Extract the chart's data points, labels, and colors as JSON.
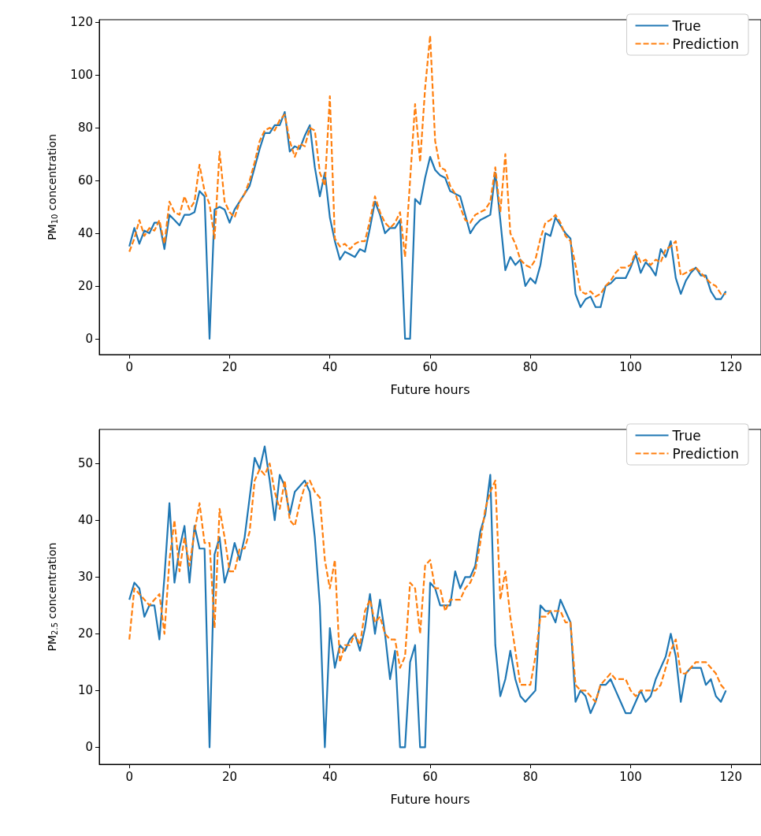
{
  "chart_data": [
    {
      "type": "line",
      "xlabel": "Future hours",
      "ylabel": "PM$_{10}$ concentration",
      "x": [
        0,
        1,
        2,
        3,
        4,
        5,
        6,
        7,
        8,
        9,
        10,
        11,
        12,
        13,
        14,
        15,
        16,
        17,
        18,
        19,
        20,
        21,
        22,
        23,
        24,
        25,
        26,
        27,
        28,
        29,
        30,
        31,
        32,
        33,
        34,
        35,
        36,
        37,
        38,
        39,
        40,
        41,
        42,
        43,
        44,
        45,
        46,
        47,
        48,
        49,
        50,
        51,
        52,
        53,
        54,
        55,
        56,
        57,
        58,
        59,
        60,
        61,
        62,
        63,
        64,
        65,
        66,
        67,
        68,
        69,
        70,
        71,
        72,
        73,
        74,
        75,
        76,
        77,
        78,
        79,
        80,
        81,
        82,
        83,
        84,
        85,
        86,
        87,
        88,
        89,
        90,
        91,
        92,
        93,
        94,
        95,
        96,
        97,
        98,
        99,
        100,
        101,
        102,
        103,
        104,
        105,
        106,
        107,
        108,
        109,
        110,
        111,
        112,
        113,
        114,
        115,
        116,
        117,
        118,
        119
      ],
      "xlim": [
        -6,
        126
      ],
      "xticks": [
        0,
        20,
        40,
        60,
        80,
        100,
        120
      ],
      "ylim": [
        -6,
        121
      ],
      "yticks": [
        0,
        20,
        40,
        60,
        80,
        100,
        120
      ],
      "grid": false,
      "legend": "top right",
      "marker": "none",
      "series": [
        {
          "name": "True",
          "color": "#1f77b4",
          "line_style": "solid",
          "values": [
            35,
            42,
            36,
            41,
            40,
            44,
            44,
            34,
            47,
            45,
            43,
            47,
            47,
            48,
            56,
            54,
            0,
            49,
            50,
            49,
            44,
            49,
            52,
            55,
            58,
            65,
            72,
            78,
            78,
            81,
            81,
            86,
            71,
            73,
            72,
            77,
            81,
            65,
            54,
            63,
            46,
            37,
            30,
            33,
            32,
            31,
            34,
            33,
            42,
            52,
            47,
            40,
            42,
            42,
            45,
            0,
            0,
            53,
            51,
            61,
            69,
            64,
            62,
            61,
            56,
            55,
            54,
            47,
            40,
            43,
            45,
            46,
            47,
            63,
            45,
            26,
            31,
            28,
            30,
            20,
            23,
            21,
            28,
            40,
            39,
            46,
            43,
            40,
            38,
            17,
            12,
            15,
            16,
            12,
            12,
            20,
            21,
            23,
            23,
            23,
            27,
            32,
            25,
            29,
            27,
            24,
            34,
            31,
            37,
            23,
            17,
            22,
            25,
            27,
            24,
            24,
            18,
            15,
            15,
            18
          ]
        },
        {
          "name": "Prediction",
          "color": "#ff7f0e",
          "line_style": "dashed",
          "values": [
            33,
            38,
            45,
            39,
            42,
            41,
            45,
            36,
            52,
            48,
            47,
            54,
            49,
            52,
            66,
            56,
            51,
            38,
            71,
            52,
            48,
            46,
            52,
            55,
            60,
            67,
            75,
            79,
            80,
            79,
            83,
            85,
            75,
            69,
            74,
            73,
            80,
            79,
            63,
            58,
            92,
            38,
            35,
            36,
            34,
            36,
            37,
            37,
            45,
            54,
            48,
            44,
            42,
            44,
            48,
            31,
            60,
            89,
            67,
            95,
            115,
            75,
            65,
            64,
            58,
            55,
            50,
            45,
            44,
            47,
            48,
            49,
            52,
            65,
            48,
            70,
            40,
            36,
            30,
            28,
            27,
            30,
            38,
            44,
            45,
            47,
            44,
            39,
            37,
            28,
            18,
            17,
            18,
            16,
            17,
            20,
            22,
            25,
            27,
            27,
            28,
            33,
            29,
            30,
            28,
            30,
            29,
            34,
            35,
            37,
            24,
            25,
            26,
            27,
            25,
            23,
            21,
            20,
            17,
            17
          ]
        }
      ]
    },
    {
      "type": "line",
      "xlabel": "Future hours",
      "ylabel": "PM$_{2.5}$ concentration",
      "x": [
        0,
        1,
        2,
        3,
        4,
        5,
        6,
        7,
        8,
        9,
        10,
        11,
        12,
        13,
        14,
        15,
        16,
        17,
        18,
        19,
        20,
        21,
        22,
        23,
        24,
        25,
        26,
        27,
        28,
        29,
        30,
        31,
        32,
        33,
        34,
        35,
        36,
        37,
        38,
        39,
        40,
        41,
        42,
        43,
        44,
        45,
        46,
        47,
        48,
        49,
        50,
        51,
        52,
        53,
        54,
        55,
        56,
        57,
        58,
        59,
        60,
        61,
        62,
        63,
        64,
        65,
        66,
        67,
        68,
        69,
        70,
        71,
        72,
        73,
        74,
        75,
        76,
        77,
        78,
        79,
        80,
        81,
        82,
        83,
        84,
        85,
        86,
        87,
        88,
        89,
        90,
        91,
        92,
        93,
        94,
        95,
        96,
        97,
        98,
        99,
        100,
        101,
        102,
        103,
        104,
        105,
        106,
        107,
        108,
        109,
        110,
        111,
        112,
        113,
        114,
        115,
        116,
        117,
        118,
        119
      ],
      "xlim": [
        -6,
        126
      ],
      "xticks": [
        0,
        20,
        40,
        60,
        80,
        100,
        120
      ],
      "ylim": [
        -3,
        56
      ],
      "yticks": [
        0,
        10,
        20,
        30,
        40,
        50
      ],
      "grid": false,
      "legend": "top right",
      "marker": "none",
      "series": [
        {
          "name": "True",
          "color": "#1f77b4",
          "line_style": "solid",
          "values": [
            26,
            29,
            28,
            23,
            25,
            25,
            19,
            30,
            43,
            29,
            35,
            39,
            29,
            39,
            35,
            35,
            0,
            34,
            37,
            29,
            32,
            36,
            33,
            37,
            44,
            51,
            49,
            53,
            47,
            40,
            48,
            46,
            41,
            45,
            46,
            47,
            45,
            37,
            25,
            0,
            21,
            14,
            18,
            17,
            19,
            20,
            17,
            21,
            27,
            20,
            26,
            20,
            12,
            17,
            0,
            0,
            15,
            18,
            0,
            0,
            29,
            28,
            25,
            25,
            25,
            31,
            28,
            30,
            30,
            32,
            38,
            41,
            48,
            18,
            9,
            12,
            17,
            12,
            9,
            8,
            9,
            10,
            25,
            24,
            24,
            22,
            26,
            24,
            22,
            8,
            10,
            9,
            6,
            8,
            11,
            11,
            12,
            10,
            8,
            6,
            6,
            8,
            10,
            8,
            9,
            12,
            14,
            16,
            20,
            16,
            8,
            13,
            14,
            14,
            14,
            11,
            12,
            9,
            8,
            10
          ]
        },
        {
          "name": "Prediction",
          "color": "#ff7f0e",
          "line_style": "dashed",
          "values": [
            19,
            28,
            27,
            26,
            25,
            26,
            27,
            20,
            33,
            40,
            31,
            37,
            32,
            38,
            43,
            36,
            36,
            21,
            42,
            37,
            31,
            31,
            35,
            35,
            38,
            47,
            49,
            48,
            50,
            45,
            42,
            47,
            40,
            39,
            43,
            46,
            47,
            45,
            44,
            33,
            28,
            33,
            15,
            18,
            18,
            20,
            18,
            24,
            26,
            22,
            23,
            20,
            19,
            19,
            14,
            16,
            29,
            28,
            20,
            32,
            33,
            28,
            28,
            24,
            26,
            26,
            26,
            28,
            29,
            31,
            36,
            42,
            45,
            47,
            26,
            31,
            23,
            17,
            11,
            11,
            11,
            16,
            23,
            23,
            24,
            24,
            24,
            22,
            22,
            11,
            10,
            10,
            9,
            8,
            11,
            12,
            13,
            12,
            12,
            12,
            10,
            9,
            10,
            10,
            10,
            10,
            11,
            14,
            17,
            19,
            13,
            13,
            14,
            15,
            15,
            15,
            14,
            13,
            11,
            10
          ]
        }
      ]
    }
  ]
}
